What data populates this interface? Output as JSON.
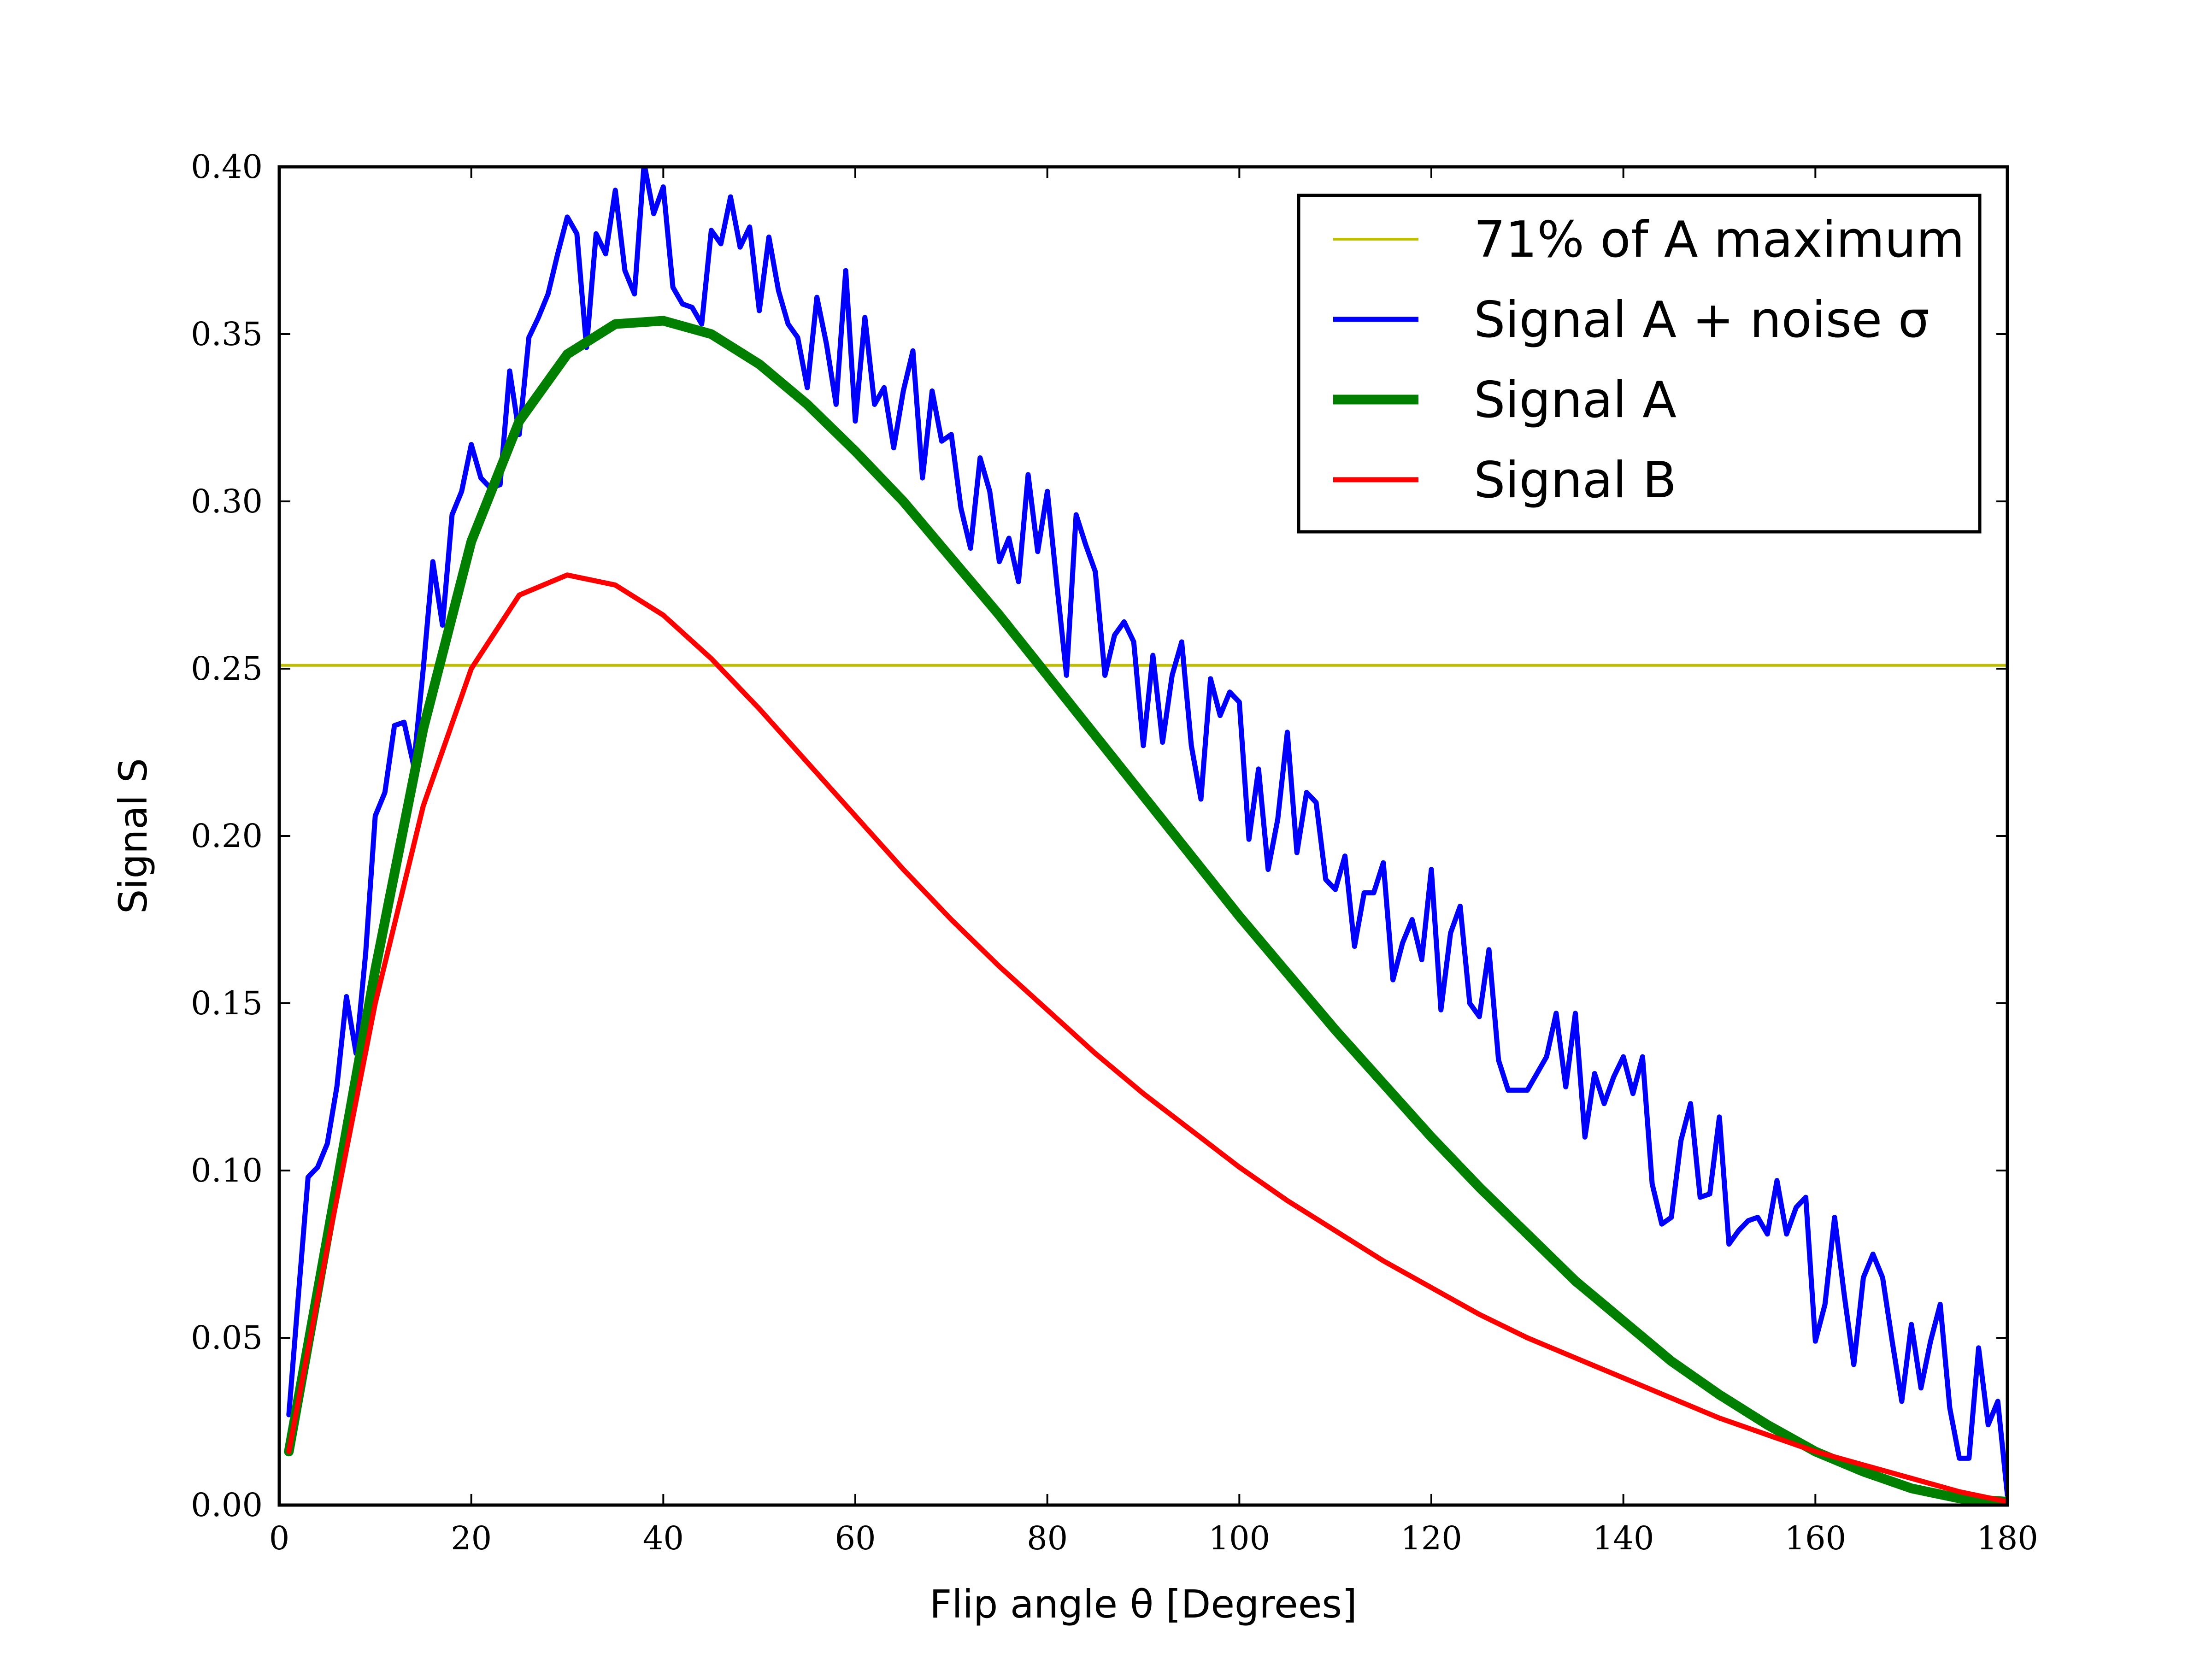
{
  "chart_data": {
    "type": "line",
    "xlabel": "Flip angle θ [Degrees]",
    "ylabel": "Signal S",
    "xlim": [
      0,
      180
    ],
    "ylim": [
      0,
      0.4
    ],
    "xticks": [
      0,
      20,
      40,
      60,
      80,
      100,
      120,
      140,
      160,
      180
    ],
    "xtick_labels": [
      "0",
      "20",
      "40",
      "60",
      "80",
      "100",
      "120",
      "140",
      "160",
      "180"
    ],
    "yticks": [
      0,
      0.05,
      0.1,
      0.15,
      0.2,
      0.25,
      0.3,
      0.35,
      0.4
    ],
    "ytick_labels": [
      "0.00",
      "0.05",
      "0.10",
      "0.15",
      "0.20",
      "0.25",
      "0.30",
      "0.35",
      "0.40"
    ],
    "grid": false,
    "legend_position": "top-right",
    "hline": {
      "name": "71% of A maximum",
      "y": 0.251,
      "color": "#bfbf00"
    },
    "series": [
      {
        "name": "Signal A + noise σ",
        "color": "#0000ff",
        "x": [
          1,
          2,
          3,
          4,
          5,
          6,
          7,
          8,
          9,
          10,
          11,
          12,
          13,
          14,
          15,
          16,
          17,
          18,
          19,
          20,
          21,
          22,
          23,
          24,
          25,
          26,
          27,
          28,
          29,
          30,
          31,
          32,
          33,
          34,
          35,
          36,
          37,
          38,
          39,
          40,
          41,
          42,
          43,
          44,
          45,
          46,
          47,
          48,
          49,
          50,
          51,
          52,
          53,
          54,
          55,
          56,
          57,
          58,
          59,
          60,
          61,
          62,
          63,
          64,
          65,
          66,
          67,
          68,
          69,
          70,
          71,
          72,
          73,
          74,
          75,
          76,
          77,
          78,
          79,
          80,
          81,
          82,
          83,
          84,
          85,
          86,
          87,
          88,
          89,
          90,
          91,
          92,
          93,
          94,
          95,
          96,
          97,
          98,
          99,
          100,
          101,
          102,
          103,
          104,
          105,
          106,
          107,
          108,
          109,
          110,
          111,
          112,
          113,
          114,
          115,
          116,
          117,
          118,
          119,
          120,
          121,
          122,
          123,
          124,
          125,
          126,
          127,
          128,
          129,
          130,
          131,
          132,
          133,
          134,
          135,
          136,
          137,
          138,
          139,
          140,
          141,
          142,
          143,
          144,
          145,
          146,
          147,
          148,
          149,
          150,
          151,
          152,
          153,
          154,
          155,
          156,
          157,
          158,
          159,
          160,
          161,
          162,
          163,
          164,
          165,
          166,
          167,
          168,
          169,
          170,
          171,
          172,
          173,
          174,
          175,
          176,
          177,
          178,
          179,
          180
        ],
        "y": [
          0.027,
          0.063,
          0.098,
          0.101,
          0.108,
          0.125,
          0.152,
          0.135,
          0.165,
          0.206,
          0.213,
          0.233,
          0.234,
          0.221,
          0.25,
          0.282,
          0.263,
          0.296,
          0.303,
          0.317,
          0.307,
          0.304,
          0.305,
          0.339,
          0.32,
          0.349,
          0.355,
          0.362,
          0.374,
          0.385,
          0.38,
          0.346,
          0.38,
          0.374,
          0.393,
          0.369,
          0.362,
          0.401,
          0.386,
          0.394,
          0.364,
          0.359,
          0.358,
          0.353,
          0.381,
          0.377,
          0.391,
          0.376,
          0.382,
          0.357,
          0.379,
          0.363,
          0.353,
          0.349,
          0.334,
          0.361,
          0.347,
          0.329,
          0.369,
          0.324,
          0.355,
          0.329,
          0.334,
          0.316,
          0.333,
          0.345,
          0.307,
          0.333,
          0.318,
          0.32,
          0.298,
          0.286,
          0.313,
          0.303,
          0.282,
          0.289,
          0.276,
          0.308,
          0.285,
          0.303,
          0.275,
          0.248,
          0.296,
          0.287,
          0.279,
          0.248,
          0.26,
          0.264,
          0.258,
          0.227,
          0.254,
          0.228,
          0.248,
          0.258,
          0.227,
          0.211,
          0.247,
          0.236,
          0.243,
          0.24,
          0.199,
          0.22,
          0.19,
          0.205,
          0.231,
          0.195,
          0.213,
          0.21,
          0.187,
          0.184,
          0.194,
          0.167,
          0.183,
          0.183,
          0.192,
          0.157,
          0.168,
          0.175,
          0.163,
          0.19,
          0.148,
          0.171,
          0.179,
          0.15,
          0.146,
          0.166,
          0.133,
          0.124,
          0.124,
          0.124,
          0.129,
          0.134,
          0.147,
          0.125,
          0.147,
          0.11,
          0.129,
          0.12,
          0.128,
          0.134,
          0.123,
          0.134,
          0.096,
          0.084,
          0.086,
          0.109,
          0.12,
          0.092,
          0.093,
          0.116,
          0.078,
          0.082,
          0.085,
          0.086,
          0.081,
          0.097,
          0.081,
          0.089,
          0.092,
          0.049,
          0.06,
          0.086,
          0.063,
          0.042,
          0.068,
          0.075,
          0.068,
          0.049,
          0.031,
          0.054,
          0.035,
          0.049,
          0.06,
          0.029,
          0.014,
          0.014,
          0.047,
          0.024,
          0.031,
          0.003
        ]
      },
      {
        "name": "Signal A",
        "color": "#007f00",
        "x": [
          1,
          5,
          10,
          15,
          20,
          25,
          30,
          35,
          40,
          45,
          50,
          55,
          60,
          65,
          70,
          75,
          80,
          85,
          90,
          95,
          100,
          105,
          110,
          115,
          120,
          125,
          130,
          135,
          140,
          145,
          150,
          155,
          160,
          165,
          170,
          175,
          180
        ],
        "y": [
          0.016,
          0.08,
          0.16,
          0.232,
          0.288,
          0.324,
          0.344,
          0.353,
          0.354,
          0.35,
          0.341,
          0.329,
          0.315,
          0.3,
          0.283,
          0.266,
          0.248,
          0.23,
          0.212,
          0.194,
          0.176,
          0.159,
          0.142,
          0.126,
          0.11,
          0.095,
          0.081,
          0.067,
          0.055,
          0.043,
          0.033,
          0.024,
          0.016,
          0.01,
          0.005,
          0.002,
          0.001
        ]
      },
      {
        "name": "Signal B",
        "color": "#ff0000",
        "x": [
          1,
          5,
          10,
          15,
          20,
          25,
          30,
          35,
          40,
          45,
          50,
          55,
          60,
          65,
          70,
          75,
          80,
          85,
          90,
          95,
          100,
          105,
          110,
          115,
          120,
          125,
          130,
          135,
          140,
          145,
          150,
          155,
          160,
          165,
          170,
          175,
          180
        ],
        "y": [
          0.016,
          0.077,
          0.15,
          0.209,
          0.25,
          0.272,
          0.278,
          0.275,
          0.266,
          0.253,
          0.238,
          0.222,
          0.206,
          0.19,
          0.175,
          0.161,
          0.148,
          0.135,
          0.123,
          0.112,
          0.101,
          0.091,
          0.082,
          0.073,
          0.065,
          0.057,
          0.05,
          0.044,
          0.038,
          0.032,
          0.026,
          0.021,
          0.016,
          0.012,
          0.008,
          0.004,
          0.001
        ]
      }
    ]
  }
}
